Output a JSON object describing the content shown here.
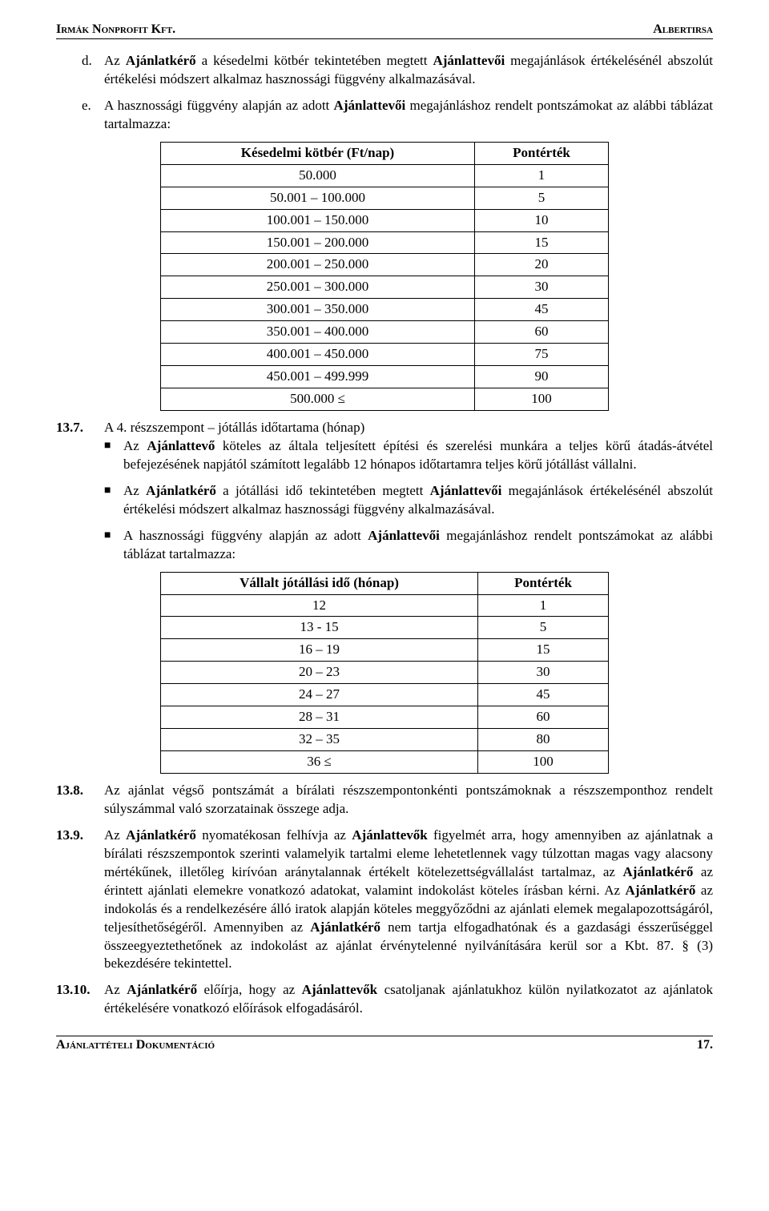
{
  "header": {
    "left": "Irmák Nonprofit Kft.",
    "right": "Albertirsa"
  },
  "footer": {
    "left": "Ajánlattételi Dokumentáció",
    "right": "17."
  },
  "section_d": {
    "marker": "d.",
    "text_parts": [
      "Az ",
      "Ajánlatkérő",
      " a késedelmi kötbér tekintetében megtett ",
      "Ajánlattevői",
      " megajánlások értékelésénél abszolút értékelési módszert alkalmaz hasznossági függvény alkalmazásával."
    ]
  },
  "section_e": {
    "text_parts": [
      "A hasznossági függvény alapján az adott ",
      "Ajánlattevői",
      " megajánláshoz rendelt pontszámokat az alábbi táblázat tartalmazza:"
    ]
  },
  "table1": {
    "col1_header": "Késedelmi kötbér (Ft/nap)",
    "col2_header": "Pontérték",
    "rows": [
      [
        "50.000",
        "1"
      ],
      [
        "50.001 – 100.000",
        "5"
      ],
      [
        "100.001 – 150.000",
        "10"
      ],
      [
        "150.001 – 200.000",
        "15"
      ],
      [
        "200.001 – 250.000",
        "20"
      ],
      [
        "250.001 – 300.000",
        "30"
      ],
      [
        "300.001 – 350.000",
        "45"
      ],
      [
        "350.001 – 400.000",
        "60"
      ],
      [
        "400.001 – 450.000",
        "75"
      ],
      [
        "450.001 – 499.999",
        "90"
      ],
      [
        "500.000 ≤",
        "100"
      ]
    ]
  },
  "item_13_7": {
    "num": "13.7.",
    "title": "A 4. részszempont – jótállás időtartama (hónap)",
    "bullet1_parts": [
      "Az ",
      "Ajánlattevő",
      " köteles az általa teljesített építési és szerelési munkára a teljes körű átadás-átvétel befejezésének napjától számított legalább 12 hónapos időtartamra teljes körű jótállást vállalni."
    ],
    "bullet2_parts": [
      "Az ",
      "Ajánlatkérő",
      " a jótállási idő tekintetében megtett ",
      "Ajánlattevői",
      " megajánlások értékelésénél abszolút értékelési módszert alkalmaz hasznossági függvény alkalmazásával."
    ],
    "bullet3_parts": [
      "A hasznossági függvény alapján az adott ",
      "Ajánlattevői",
      " megajánláshoz rendelt pontszámokat az alábbi táblázat tartalmazza:"
    ]
  },
  "table2": {
    "col1_header": "Vállalt jótállási idő (hónap)",
    "col2_header": "Pontérték",
    "rows": [
      [
        "12",
        "1"
      ],
      [
        "13 - 15",
        "5"
      ],
      [
        "16 – 19",
        "15"
      ],
      [
        "20 – 23",
        "30"
      ],
      [
        "24 – 27",
        "45"
      ],
      [
        "28 – 31",
        "60"
      ],
      [
        "32 – 35",
        "80"
      ],
      [
        "36 ≤",
        "100"
      ]
    ]
  },
  "item_13_8": {
    "num": "13.8.",
    "text": "Az ajánlat végső pontszámát a bírálati részszempontonkénti pontszámoknak a részszemponthoz rendelt súlyszámmal való szorzatainak összege adja."
  },
  "item_13_9": {
    "num": "13.9.",
    "text_parts": [
      "Az ",
      "Ajánlatkérő",
      " nyomatékosan felhívja az ",
      "Ajánlattevők",
      " figyelmét arra, hogy amennyiben az ajánlatnak a bírálati részszempontok szerinti valamelyik tartalmi eleme lehetetlennek vagy túlzottan magas vagy alacsony mértékűnek, illetőleg kirívóan aránytalannak értékelt kötelezettségvállalást tartalmaz, az ",
      "Ajánlatkérő",
      " az érintett ajánlati elemekre vonatkozó adatokat, valamint indokolást köteles írásban kérni. Az ",
      "Ajánlatkérő",
      " az indokolás és a rendelkezésére álló iratok alapján köteles meggyőződni az ajánlati elemek megalapozottságáról, teljesíthetőségéről. Amennyiben az ",
      "Ajánlatkérő",
      " nem tartja elfogadhatónak és a gazdasági ésszerűséggel összeegyeztethetőnek az indokolást az ajánlat érvénytelenné nyilvánítására kerül sor a Kbt. 87. § (3) bekezdésére tekintettel."
    ]
  },
  "item_13_10": {
    "num": "13.10.",
    "text_parts": [
      "Az ",
      "Ajánlatkérő",
      " előírja, hogy az ",
      "Ajánlattevők",
      " csatoljanak ajánlatukhoz külön nyilatkozatot az ajánlatok értékelésére vonatkozó előírások elfogadásáról."
    ]
  }
}
